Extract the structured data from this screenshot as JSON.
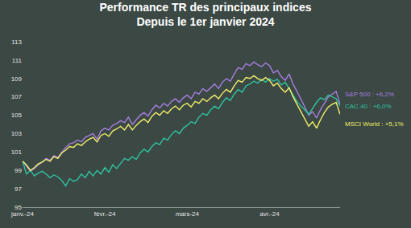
{
  "chart_data": {
    "type": "line",
    "title": "Performance TR des principaux indices",
    "subtitle": "Depuis le 1er janvier 2024",
    "categories": [
      "janv.-24",
      null,
      null,
      null,
      null,
      null,
      null,
      null,
      null,
      null,
      null,
      null,
      null,
      null,
      null,
      null,
      null,
      null,
      null,
      null,
      null,
      "févr.-24",
      null,
      null,
      null,
      null,
      null,
      null,
      null,
      null,
      null,
      null,
      null,
      null,
      null,
      null,
      null,
      null,
      null,
      null,
      null,
      null,
      "mars-24",
      null,
      null,
      null,
      null,
      null,
      null,
      null,
      null,
      null,
      null,
      null,
      null,
      null,
      null,
      null,
      null,
      null,
      null,
      null,
      null,
      "avr.-24",
      null,
      null,
      null,
      null,
      null,
      null,
      null,
      null,
      null,
      null,
      null,
      null,
      null,
      null,
      null,
      null,
      null,
      null
    ],
    "series": [
      {
        "name": "S&P 500 : +6,2%",
        "color": "#a77fe0",
        "values": [
          100,
          99.4,
          98.9,
          99.2,
          99.6,
          99.9,
          100.3,
          100.1,
          100.6,
          100.4,
          101.0,
          101.5,
          101.9,
          102.0,
          102.3,
          102.1,
          102.6,
          102.8,
          103.0,
          102.4,
          103.3,
          103.6,
          103.4,
          103.9,
          104.1,
          104.4,
          104.2,
          104.8,
          104.0,
          104.5,
          105.0,
          105.3,
          104.9,
          105.6,
          106.1,
          105.8,
          106.3,
          106.0,
          106.5,
          106.8,
          106.4,
          106.9,
          107.2,
          106.8,
          107.5,
          107.3,
          107.9,
          107.6,
          108.0,
          108.4,
          107.9,
          108.6,
          109.0,
          108.7,
          109.5,
          110.2,
          110.0,
          110.6,
          110.4,
          110.8,
          110.5,
          110.3,
          110.7,
          110.4,
          109.6,
          109.9,
          109.2,
          108.8,
          109.5,
          108.4,
          107.6,
          106.8,
          105.9,
          105.0,
          105.4,
          104.7,
          105.6,
          106.3,
          107.0,
          107.3,
          107.6,
          106.2
        ]
      },
      {
        "name": "CAC 40 : +6,0%",
        "color": "#2ec4a0",
        "values": [
          100,
          98.6,
          99.0,
          98.4,
          98.7,
          98.9,
          98.6,
          98.2,
          98.5,
          98.3,
          97.9,
          97.3,
          98.1,
          97.8,
          98.0,
          98.6,
          98.2,
          98.9,
          98.4,
          99.0,
          98.6,
          99.3,
          98.8,
          99.6,
          99.2,
          99.8,
          100.3,
          100.1,
          100.5,
          100.2,
          100.9,
          101.3,
          101.0,
          101.6,
          102.0,
          101.8,
          102.5,
          102.3,
          102.9,
          103.3,
          103.0,
          103.6,
          103.9,
          104.3,
          104.1,
          104.8,
          105.2,
          105.0,
          105.6,
          106.0,
          105.7,
          106.4,
          106.9,
          106.6,
          107.3,
          107.8,
          107.5,
          108.2,
          108.4,
          108.7,
          108.5,
          108.9,
          108.6,
          109.0,
          108.7,
          108.9,
          108.3,
          108.6,
          107.9,
          107.2,
          106.5,
          106.0,
          105.6,
          105.1,
          105.8,
          106.4,
          106.9,
          106.7,
          107.2,
          107.0,
          106.8,
          106.0
        ]
      },
      {
        "name": "MSCI World : +5,1%",
        "color": "#f2ee6a",
        "values": [
          100,
          99.6,
          99.0,
          99.3,
          99.7,
          99.9,
          100.2,
          100.0,
          100.5,
          100.3,
          100.9,
          101.2,
          101.6,
          101.5,
          101.9,
          101.7,
          102.1,
          102.4,
          102.6,
          102.1,
          102.8,
          103.0,
          102.7,
          103.3,
          103.5,
          103.8,
          103.4,
          104.0,
          103.4,
          103.9,
          104.3,
          104.6,
          104.2,
          104.9,
          105.3,
          105.0,
          105.5,
          105.2,
          105.7,
          106.0,
          105.6,
          106.1,
          106.3,
          105.9,
          106.5,
          106.3,
          106.8,
          106.5,
          106.9,
          107.2,
          106.8,
          107.4,
          107.8,
          107.5,
          108.2,
          108.8,
          108.6,
          109.1,
          109.0,
          109.3,
          109.0,
          108.8,
          109.1,
          108.8,
          108.2,
          108.5,
          107.9,
          107.5,
          108.0,
          107.0,
          106.2,
          105.4,
          104.6,
          103.8,
          104.3,
          103.6,
          104.5,
          105.3,
          105.9,
          106.2,
          106.4,
          105.1
        ]
      }
    ],
    "ylim": [
      95,
      113
    ],
    "yticks": [
      95,
      97,
      99,
      101,
      103,
      105,
      107,
      109,
      111,
      113
    ],
    "grid": false
  }
}
